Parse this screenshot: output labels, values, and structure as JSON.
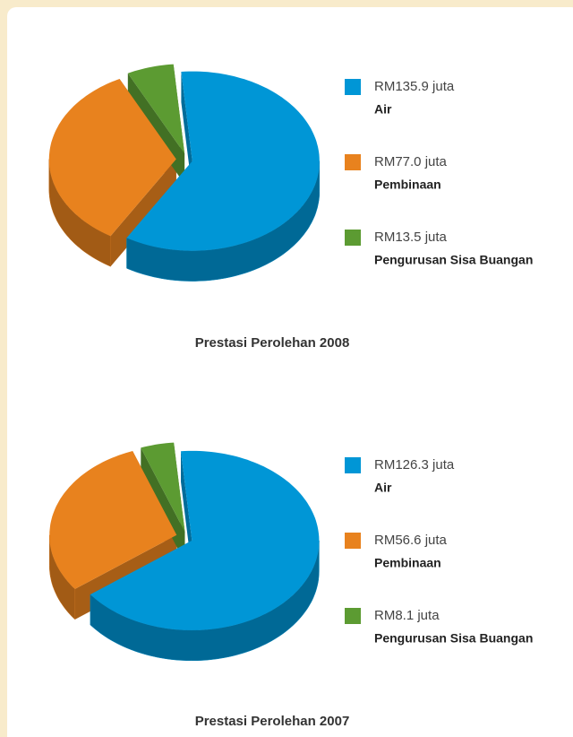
{
  "chart_data": [
    {
      "type": "pie",
      "title": "Prestasi Perolehan 2008",
      "categories": [
        "Air",
        "Pembinaan",
        "Pengurusan Sisa Buangan"
      ],
      "values": [
        135.9,
        77.0,
        13.5
      ],
      "value_labels": [
        "RM135.9 juta",
        "RM77.0 juta",
        "RM13.5 juta"
      ],
      "colors": [
        "#0096d6",
        "#e8821e",
        "#5c9b32"
      ]
    },
    {
      "type": "pie",
      "title": "Prestasi Perolehan 2007",
      "categories": [
        "Air",
        "Pembinaan",
        "Pengurusan Sisa Buangan"
      ],
      "values": [
        126.3,
        56.6,
        8.1
      ],
      "value_labels": [
        "RM126.3 juta",
        "RM56.6 juta",
        "RM8.1 juta"
      ],
      "colors": [
        "#0096d6",
        "#e8821e",
        "#5c9b32"
      ]
    }
  ]
}
